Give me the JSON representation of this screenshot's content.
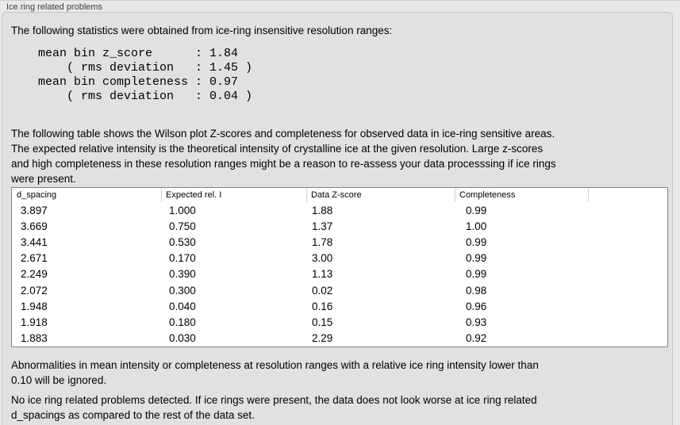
{
  "panel": {
    "title": "Ice ring related problems",
    "intro": "The following statistics were obtained from ice-ring insensitive resolution ranges:",
    "stats_block": "mean bin z_score      : 1.84\n    ( rms deviation   : 1.45 )\nmean bin completeness : 0.97\n    ( rms deviation   : 0.04 )",
    "stats": {
      "mean_bin_z_score": "1.84",
      "z_score_rms_deviation": "1.45",
      "mean_bin_completeness": "0.97",
      "completeness_rms_deviation": "0.04"
    },
    "table_description": "The following table shows the Wilson plot Z-scores and completeness for observed data in ice-ring sensitive areas.\nThe expected relative intensity is the theoretical intensity of crystalline ice at the given resolution. Large z-scores\nand high completeness in these resolution ranges might be a reason to re-assess your data processsing if ice rings\nwere present.",
    "note": "Abnormalities in mean intensity or completeness at resolution ranges with a relative ice ring intensity lower than\n0.10 will be ignored.",
    "conclusion": "No ice ring related problems detected. If ice rings were present, the data does not look worse at ice ring related\nd_spacings as compared to the rest of the data set."
  },
  "table": {
    "columns": [
      "d_spacing",
      "Expected rel. I",
      "Data Z-score",
      "Completeness",
      ""
    ],
    "rows": [
      [
        "3.897",
        "1.000",
        "1.88",
        "0.99"
      ],
      [
        "3.669",
        "0.750",
        "1.37",
        "1.00"
      ],
      [
        "3.441",
        "0.530",
        "1.78",
        "0.99"
      ],
      [
        "2.671",
        "0.170",
        "3.00",
        "0.99"
      ],
      [
        "2.249",
        "0.390",
        "1.13",
        "0.99"
      ],
      [
        "2.072",
        "0.300",
        "0.02",
        "0.98"
      ],
      [
        "1.948",
        "0.040",
        "0.16",
        "0.96"
      ],
      [
        "1.918",
        "0.180",
        "0.15",
        "0.93"
      ],
      [
        "1.883",
        "0.030",
        "2.29",
        "0.92"
      ]
    ]
  }
}
